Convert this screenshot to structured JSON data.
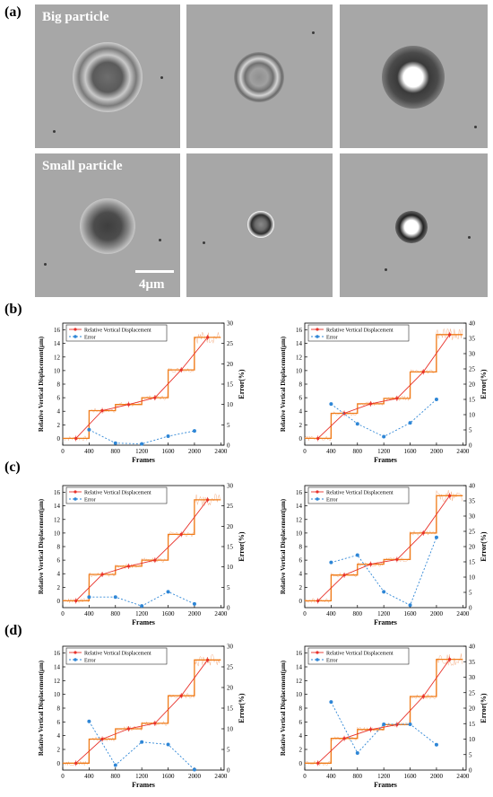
{
  "panel_labels": {
    "a": "(a)",
    "b": "(b)",
    "c": "(c)",
    "d": "(d)"
  },
  "micrographs": {
    "big_label": "Big particle",
    "small_label": "Small particle",
    "scale_bar": "4μm"
  },
  "colors": {
    "displacement": "#e8312a",
    "step": "#f07d1a",
    "error": "#2e86d6",
    "noise": "#f6b28a"
  },
  "chart_data": [
    {
      "id": "b-left",
      "type": "line",
      "xlabel": "Frames",
      "ylabel": "Relative Vertical Displacement(μm)",
      "y2label": "Error(%)",
      "xlim": [
        0,
        2450
      ],
      "ylim": [
        -1,
        17
      ],
      "y2lim": [
        0,
        30
      ],
      "xticks": [
        0,
        400,
        800,
        1200,
        1600,
        2000,
        2400
      ],
      "yticks": [
        0,
        2,
        4,
        6,
        8,
        10,
        12,
        14,
        16
      ],
      "y2ticks": [
        0,
        5,
        10,
        15,
        20,
        25,
        30
      ],
      "legend": [
        "Relative Vertical Displacement",
        "Error"
      ],
      "series": [
        {
          "name": "Relative Vertical Displacement",
          "axis": "left",
          "x": [
            200,
            600,
            1000,
            1400,
            1800,
            2200
          ],
          "y": [
            0.0,
            4.1,
            5.0,
            6.0,
            10.1,
            14.9
          ]
        },
        {
          "name": "Error",
          "axis": "right",
          "x": [
            400,
            800,
            1200,
            1600,
            2000
          ],
          "y": [
            3.8,
            0.5,
            0.3,
            2.2,
            3.5
          ]
        }
      ],
      "steps": [
        [
          0,
          400,
          0.0
        ],
        [
          400,
          800,
          4.1
        ],
        [
          800,
          1200,
          5.0
        ],
        [
          1200,
          1600,
          6.0
        ],
        [
          1600,
          2000,
          10.1
        ],
        [
          2000,
          2400,
          14.9
        ]
      ]
    },
    {
      "id": "b-right",
      "type": "line",
      "xlabel": "Frames",
      "ylabel": "Relative Vertical Displacement(μm)",
      "y2label": "Error(%)",
      "xlim": [
        0,
        2450
      ],
      "ylim": [
        -1,
        17
      ],
      "y2lim": [
        0,
        40
      ],
      "xticks": [
        0,
        400,
        800,
        1200,
        1600,
        2000,
        2400
      ],
      "yticks": [
        0,
        2,
        4,
        6,
        8,
        10,
        12,
        14,
        16
      ],
      "y2ticks": [
        0,
        5,
        10,
        15,
        20,
        25,
        30,
        35,
        40
      ],
      "legend": [
        "Relative Vertical Displacement",
        "Error"
      ],
      "series": [
        {
          "name": "Relative Vertical Displacement",
          "axis": "left",
          "x": [
            200,
            600,
            1000,
            1400,
            1800,
            2200
          ],
          "y": [
            0.0,
            3.7,
            5.1,
            5.9,
            9.8,
            15.3
          ]
        },
        {
          "name": "Error",
          "axis": "right",
          "x": [
            400,
            800,
            1200,
            1600,
            2000
          ],
          "y": [
            13.5,
            7.0,
            2.8,
            7.3,
            15.0
          ]
        }
      ],
      "steps": [
        [
          0,
          400,
          0.0
        ],
        [
          400,
          800,
          3.7
        ],
        [
          800,
          1200,
          5.1
        ],
        [
          1200,
          1600,
          5.9
        ],
        [
          1600,
          2000,
          9.8
        ],
        [
          2000,
          2400,
          15.3
        ]
      ]
    },
    {
      "id": "c-left",
      "type": "line",
      "xlabel": "Frames",
      "ylabel": "Relative Vertical Displacement(μm)",
      "y2label": "Error(%)",
      "xlim": [
        0,
        2450
      ],
      "ylim": [
        -1,
        17
      ],
      "y2lim": [
        0,
        30
      ],
      "xticks": [
        0,
        400,
        800,
        1200,
        1600,
        2000,
        2400
      ],
      "yticks": [
        0,
        2,
        4,
        6,
        8,
        10,
        12,
        14,
        16
      ],
      "y2ticks": [
        0,
        5,
        10,
        15,
        20,
        25,
        30
      ],
      "legend": [
        "Relative Vertical Displacement",
        "Error"
      ],
      "series": [
        {
          "name": "Relative Vertical Displacement",
          "axis": "left",
          "x": [
            200,
            600,
            1000,
            1400,
            1800,
            2200
          ],
          "y": [
            0.0,
            3.9,
            5.1,
            6.0,
            9.8,
            14.9
          ]
        },
        {
          "name": "Error",
          "axis": "right",
          "x": [
            400,
            800,
            1200,
            1600,
            2000
          ],
          "y": [
            2.6,
            2.6,
            0.4,
            3.9,
            0.9
          ]
        }
      ],
      "steps": [
        [
          0,
          400,
          0.0
        ],
        [
          400,
          800,
          3.9
        ],
        [
          800,
          1200,
          5.1
        ],
        [
          1200,
          1600,
          6.0
        ],
        [
          1600,
          2000,
          9.8
        ],
        [
          2000,
          2400,
          14.9
        ]
      ]
    },
    {
      "id": "c-right",
      "type": "line",
      "xlabel": "Frames",
      "ylabel": "Relative Vertical Displacement(μm)",
      "y2label": "Error(%)",
      "xlim": [
        0,
        2450
      ],
      "ylim": [
        -1,
        17
      ],
      "y2lim": [
        0,
        40
      ],
      "xticks": [
        0,
        400,
        800,
        1200,
        1600,
        2000,
        2400
      ],
      "yticks": [
        0,
        2,
        4,
        6,
        8,
        10,
        12,
        14,
        16
      ],
      "y2ticks": [
        0,
        5,
        10,
        15,
        20,
        25,
        30,
        35,
        40
      ],
      "legend": [
        "Relative Vertical Displacement",
        "Error"
      ],
      "series": [
        {
          "name": "Relative Vertical Displacement",
          "axis": "left",
          "x": [
            200,
            600,
            1000,
            1400,
            1800,
            2200
          ],
          "y": [
            0.0,
            3.8,
            5.4,
            6.1,
            10.0,
            15.5
          ]
        },
        {
          "name": "Error",
          "axis": "right",
          "x": [
            400,
            800,
            1200,
            1600,
            2000
          ],
          "y": [
            14.8,
            17.2,
            5.2,
            0.8,
            23.0
          ]
        }
      ],
      "steps": [
        [
          0,
          400,
          0.0
        ],
        [
          400,
          800,
          3.8
        ],
        [
          800,
          1200,
          5.4
        ],
        [
          1200,
          1600,
          6.1
        ],
        [
          1600,
          2000,
          10.0
        ],
        [
          2000,
          2400,
          15.5
        ]
      ]
    },
    {
      "id": "d-left",
      "type": "line",
      "xlabel": "Frames",
      "ylabel": "Relative Vertical Displacement(μm)",
      "y2label": "Error(%)",
      "xlim": [
        0,
        2450
      ],
      "ylim": [
        -1,
        17
      ],
      "y2lim": [
        0,
        30
      ],
      "xticks": [
        0,
        400,
        800,
        1200,
        1600,
        2000,
        2400
      ],
      "yticks": [
        0,
        2,
        4,
        6,
        8,
        10,
        12,
        14,
        16
      ],
      "y2ticks": [
        0,
        5,
        10,
        15,
        20,
        25,
        30
      ],
      "legend": [
        "Relative Vertical Displacement",
        "Error"
      ],
      "series": [
        {
          "name": "Relative Vertical Displacement",
          "axis": "left",
          "x": [
            200,
            600,
            1000,
            1400,
            1800,
            2200
          ],
          "y": [
            0.0,
            3.5,
            5.0,
            5.8,
            9.8,
            15.0
          ]
        },
        {
          "name": "Error",
          "axis": "right",
          "x": [
            400,
            800,
            1200,
            1600,
            2000
          ],
          "y": [
            11.8,
            1.2,
            6.8,
            6.2,
            0.1
          ]
        }
      ],
      "steps": [
        [
          0,
          400,
          0.0
        ],
        [
          400,
          800,
          3.5
        ],
        [
          800,
          1200,
          5.0
        ],
        [
          1200,
          1600,
          5.8
        ],
        [
          1600,
          2000,
          9.8
        ],
        [
          2000,
          2400,
          15.0
        ]
      ]
    },
    {
      "id": "d-right",
      "type": "line",
      "xlabel": "Frames",
      "ylabel": "Relative Vertical Displacement(μm)",
      "y2label": "Error(%)",
      "xlim": [
        0,
        2450
      ],
      "ylim": [
        -1,
        17
      ],
      "y2lim": [
        0,
        40
      ],
      "xticks": [
        0,
        400,
        800,
        1200,
        1600,
        2000,
        2400
      ],
      "yticks": [
        0,
        2,
        4,
        6,
        8,
        10,
        12,
        14,
        16
      ],
      "y2ticks": [
        0,
        5,
        10,
        15,
        20,
        25,
        30,
        35,
        40
      ],
      "legend": [
        "Relative Vertical Displacement",
        "Error"
      ],
      "series": [
        {
          "name": "Relative Vertical Displacement",
          "axis": "left",
          "x": [
            200,
            600,
            1000,
            1400,
            1800,
            2200
          ],
          "y": [
            0.0,
            3.6,
            4.9,
            5.6,
            9.7,
            15.1
          ]
        },
        {
          "name": "Error",
          "axis": "right",
          "x": [
            400,
            800,
            1200,
            1600,
            2000
          ],
          "y": [
            22.0,
            5.5,
            14.8,
            14.8,
            8.2
          ]
        }
      ],
      "steps": [
        [
          0,
          400,
          0.0
        ],
        [
          400,
          800,
          3.6
        ],
        [
          800,
          1200,
          4.9
        ],
        [
          1200,
          1600,
          5.6
        ],
        [
          1600,
          2000,
          9.7
        ],
        [
          2000,
          2400,
          15.1
        ]
      ]
    }
  ]
}
